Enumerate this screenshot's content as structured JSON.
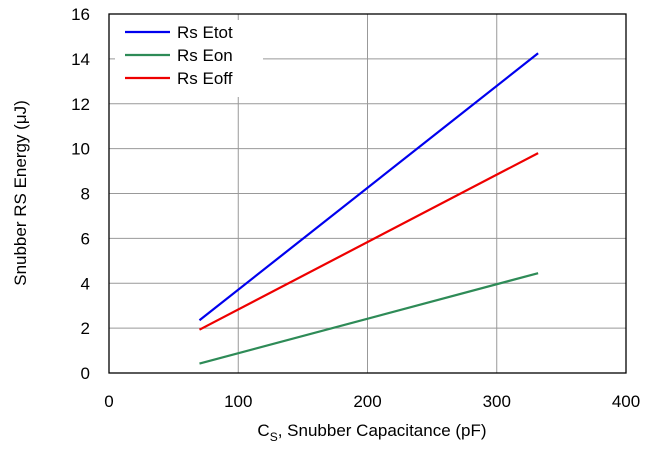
{
  "chart_data": {
    "type": "line",
    "xlabel": {
      "main": "C",
      "sub": "S",
      "rest": ", Snubber Capacitance (pF)"
    },
    "ylabel": "Snubber RS Energy (μJ)",
    "xlim": [
      0,
      400
    ],
    "ylim": [
      0,
      16
    ],
    "xticks": [
      "0",
      "100",
      "200",
      "300",
      "400"
    ],
    "yticks": [
      "0",
      "2",
      "4",
      "6",
      "8",
      "10",
      "12",
      "14",
      "16"
    ],
    "grid": true,
    "legend_position": "top-left",
    "series": [
      {
        "name": "Rs Etot",
        "color": "#0000ee",
        "x": [
          70,
          332
        ],
        "y": [
          2.35,
          14.25
        ]
      },
      {
        "name": "Rs Eon",
        "color": "#2e8b57",
        "x": [
          70,
          332
        ],
        "y": [
          0.42,
          4.45
        ]
      },
      {
        "name": "Rs Eoff",
        "color": "#ee0000",
        "x": [
          70,
          332
        ],
        "y": [
          1.93,
          9.8
        ]
      }
    ]
  }
}
